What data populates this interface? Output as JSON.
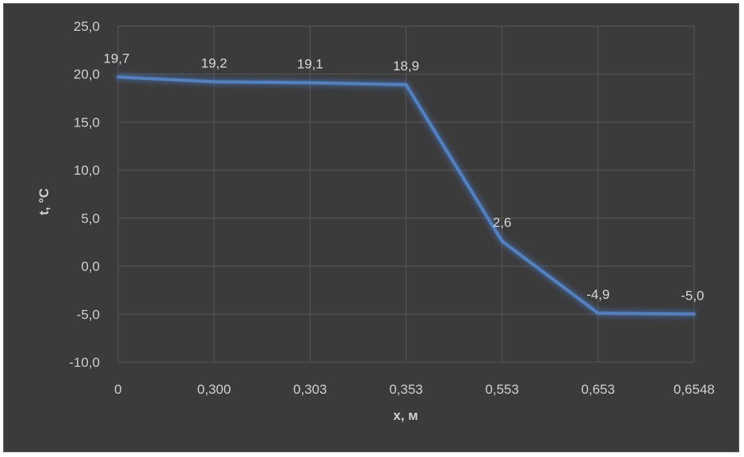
{
  "chart_data": {
    "type": "line",
    "title": "",
    "xlabel": "x, м",
    "ylabel": "t, °C",
    "categories": [
      "0",
      "0,300",
      "0,303",
      "0,353",
      "0,553",
      "0,653",
      "0,6548"
    ],
    "series": [
      {
        "values": [
          19.7,
          19.2,
          19.1,
          18.9,
          2.6,
          -4.9,
          -5.0
        ],
        "labels": [
          "19,7",
          "19,2",
          "19,1",
          "18,9",
          "2,6",
          "-4,9",
          "-5,0"
        ],
        "color": "#4f81c7"
      }
    ],
    "ylim": [
      -10,
      25
    ],
    "yticks": [
      25,
      20,
      15,
      10,
      5,
      0,
      -5,
      -10
    ],
    "ytick_labels": [
      "25,0",
      "20,0",
      "15,0",
      "10,0",
      "5,0",
      "0,0",
      "-5,0",
      "-10,0"
    ],
    "grid": true,
    "legend": "none",
    "background": "#3b3b3b",
    "gridline_color": "#595959"
  }
}
